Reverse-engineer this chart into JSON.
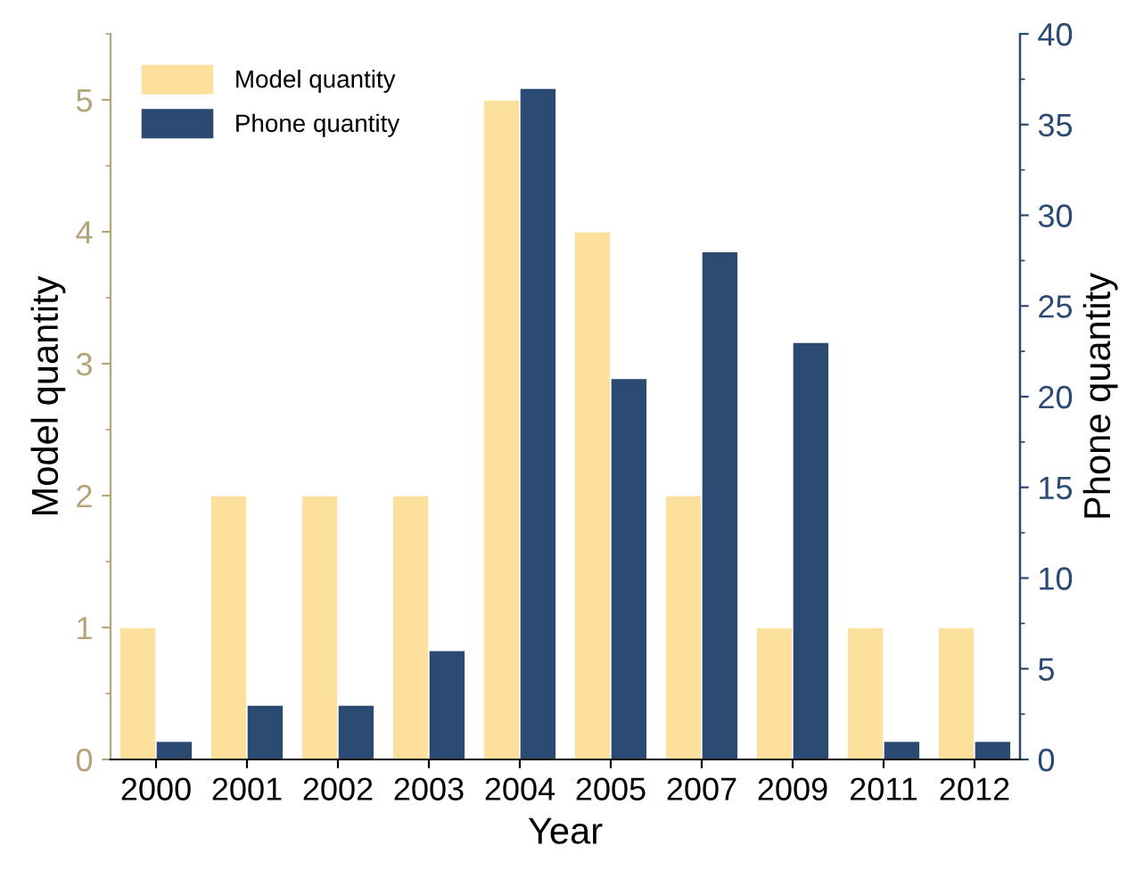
{
  "chart_data": {
    "type": "bar",
    "xlabel": "Year",
    "ylabel": "Model quantity",
    "y2label": "Phone quantity",
    "categories": [
      "2000",
      "2001",
      "2002",
      "2003",
      "2004",
      "2005",
      "2007",
      "2009",
      "2011",
      "2012"
    ],
    "series": [
      {
        "name": "Model quantity",
        "color": "#fce09b",
        "values": [
          1,
          2,
          2,
          2,
          5,
          4,
          2,
          1,
          1,
          1
        ]
      },
      {
        "name": "Phone quantity",
        "color": "#2a4a72",
        "axis": "y2",
        "values": [
          1,
          3,
          3,
          6,
          37,
          21,
          28,
          23,
          1,
          1
        ]
      }
    ],
    "ylim": [
      0,
      5.5
    ],
    "yticks": [
      0,
      1,
      2,
      3,
      4,
      5
    ],
    "y2lim": [
      0,
      40
    ],
    "y2ticks": [
      0,
      5,
      10,
      15,
      20,
      25,
      30,
      35,
      40
    ],
    "legend": "top left",
    "grid": false
  }
}
